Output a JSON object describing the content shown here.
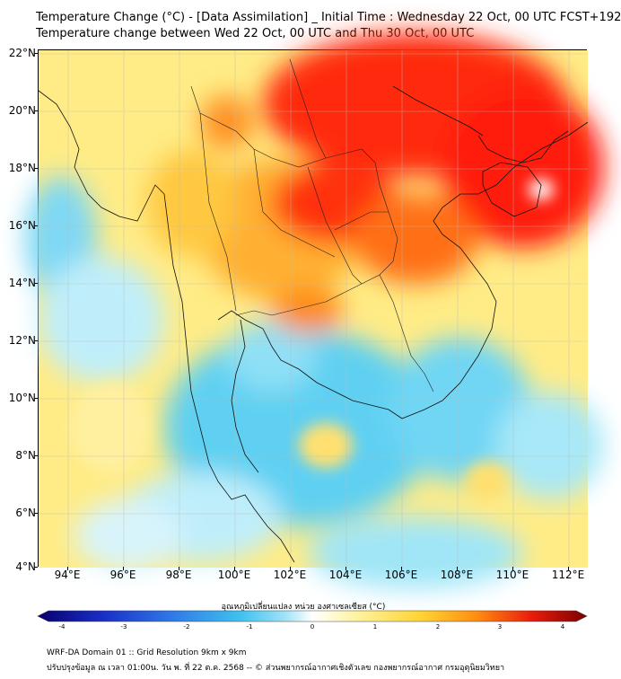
{
  "title_line1": "Temperature Change (°C) - [Data Assimilation] _ Initial Time : Wednesday 22 Oct, 00 UTC FCST+192",
  "title_line2": "Temperature change between Wed 22 Oct, 00 UTC and Thu 30 Oct, 00 UTC",
  "y_labels": [
    "22°N",
    "20°N",
    "18°N",
    "16°N",
    "14°N",
    "12°N",
    "10°N",
    "8°N",
    "6°N",
    "4°N"
  ],
  "x_labels": [
    "94°E",
    "96°E",
    "98°E",
    "100°E",
    "102°E",
    "104°E",
    "106°E",
    "108°E",
    "110°E",
    "112°E"
  ],
  "colorbar": {
    "title": "อุณหภูมิเปลี่ยนแปลง หน่วย องศาเซลเซียส (°C)",
    "tick_labels": [
      "-4",
      "-3",
      "-2",
      "-1",
      "0",
      "1",
      "2",
      "3",
      "4"
    ],
    "range": [
      -4,
      4
    ],
    "colors": [
      "#08006e",
      "#1a2fc7",
      "#2f7de8",
      "#3fc2f0",
      "#9fe2f6",
      "#ffffff",
      "#fff3a0",
      "#ffd330",
      "#ff8c10",
      "#e81c0c",
      "#7a0000"
    ]
  },
  "footer_line1": "WRF-DA Domain 01 :: Grid Resolution 9km x 9km",
  "footer_line2": "ปรับปรุงข้อมูล ณ เวลา 01:00น. วัน พ. ที่ 22 ต.ค. 2568 -- © ส่วนพยากรณ์อากาศเชิงตัวเลข กองพยากรณ์อากาศ กรมอุตุนิยมวิทยา"
}
